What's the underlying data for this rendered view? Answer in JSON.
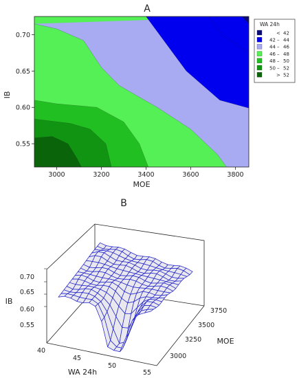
{
  "chart_data": [
    {
      "type": "contour",
      "panel_label": "A",
      "xlabel": "MOE",
      "ylabel": "IB",
      "xlim": [
        2900,
        3860
      ],
      "ylim": [
        0.518,
        0.725
      ],
      "x_ticks": [
        "3000",
        "3200",
        "3400",
        "3600",
        "3800"
      ],
      "y_ticks": [
        "0.55",
        "0.60",
        "0.65",
        "0.70"
      ],
      "legend_title": "WA 24h",
      "legend_position": "right",
      "levels": [
        {
          "op": "<",
          "lo": "",
          "hi": "42",
          "color": "#0a0a78"
        },
        {
          "op": "–",
          "lo": "42",
          "hi": "44",
          "color": "#0000ee"
        },
        {
          "op": "–",
          "lo": "44",
          "hi": "46",
          "color": "#a8aaf2"
        },
        {
          "op": "–",
          "lo": "46",
          "hi": "48",
          "color": "#55f055"
        },
        {
          "op": "–",
          "lo": "48",
          "hi": "50",
          "color": "#22bf22"
        },
        {
          "op": "–",
          "lo": "50",
          "hi": "52",
          "color": "#119411"
        },
        {
          "op": ">",
          "lo": "",
          "hi": "52",
          "color": "#0a640a"
        }
      ],
      "boundaries": {
        "44": [
          [
            3680,
            0.725
          ],
          [
            3740,
            0.7
          ],
          [
            3860,
            0.675
          ]
        ],
        "46": [
          [
            3400,
            0.725
          ],
          [
            3460,
            0.7
          ],
          [
            3580,
            0.65
          ],
          [
            3730,
            0.61
          ],
          [
            3860,
            0.599
          ]
        ],
        "48": [
          [
            2900,
            0.715
          ],
          [
            3000,
            0.708
          ],
          [
            3120,
            0.692
          ],
          [
            3200,
            0.655
          ],
          [
            3280,
            0.63
          ],
          [
            3450,
            0.6
          ],
          [
            3600,
            0.57
          ],
          [
            3720,
            0.535
          ],
          [
            3760,
            0.518
          ]
        ],
        "50": [
          [
            2900,
            0.61
          ],
          [
            3000,
            0.605
          ],
          [
            3180,
            0.6
          ],
          [
            3300,
            0.58
          ],
          [
            3370,
            0.55
          ],
          [
            3410,
            0.518
          ]
        ],
        "52": [
          [
            2900,
            0.584
          ],
          [
            3060,
            0.578
          ],
          [
            3150,
            0.57
          ],
          [
            3220,
            0.55
          ],
          [
            3245,
            0.518
          ]
        ],
        "54": [
          [
            2900,
            0.558
          ],
          [
            2980,
            0.56
          ],
          [
            3050,
            0.55
          ],
          [
            3090,
            0.53
          ],
          [
            3110,
            0.518
          ]
        ],
        "40": [
          [
            3830,
            0.725
          ],
          [
            3860,
            0.715
          ]
        ]
      }
    },
    {
      "type": "surface",
      "panel_label": "B",
      "xlabel": "WA 24h",
      "ylabel": "MOE",
      "zlabel": "IB",
      "x_ticks": [
        "40",
        "45",
        "50",
        "55"
      ],
      "y_ticks": [
        "3000",
        "3250",
        "3500",
        "3750"
      ],
      "z_ticks": [
        "0.55",
        "0.60",
        "0.65",
        "0.70"
      ],
      "mesh_color": "#2222cc",
      "surface_color": "#e8e8ee"
    }
  ]
}
